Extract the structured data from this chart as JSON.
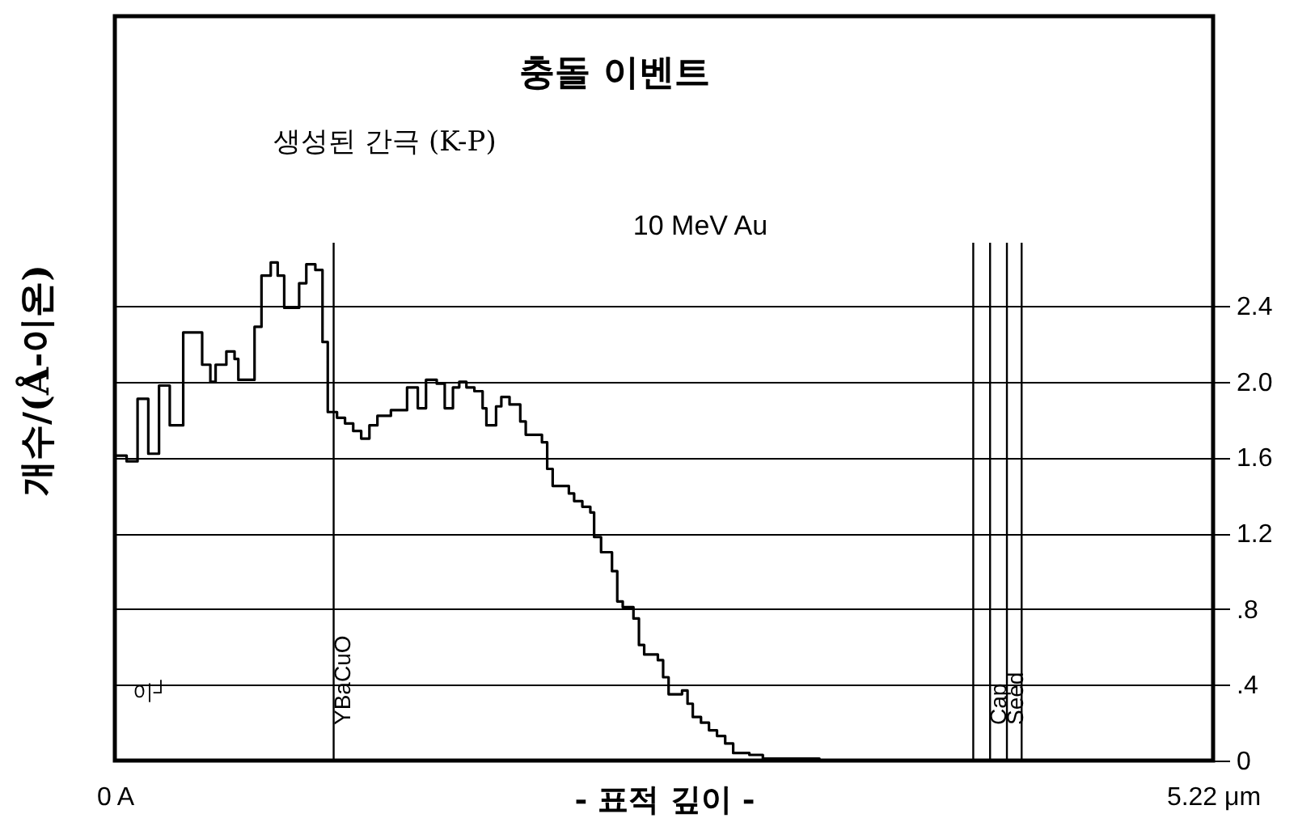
{
  "chart_data": {
    "type": "step",
    "title": "충돌 이벤트",
    "subtitle": "생성된 간극 (K-P)",
    "xlabel": "- 표적 깊이 -",
    "ylabel": "개수/(Å-이온)",
    "annotations": [
      "10 MeV Au",
      "이┘"
    ],
    "xlim": [
      0,
      5.22
    ],
    "xticks": [
      {
        "value": 0,
        "label": "0 A"
      },
      {
        "value": 5.22,
        "label": "5.22 μm"
      }
    ],
    "ylim": [
      0,
      3.93
    ],
    "yticks": [
      0,
      {
        "value": 0.4,
        "label": ".4"
      },
      {
        "value": 0.8,
        "label": ".8"
      },
      1.2,
      1.6,
      {
        "value": 2,
        "label": "2.0"
      },
      2.4
    ],
    "grid": "y",
    "ref_lines": [
      {
        "axis": "x",
        "value": 1.04,
        "label": "YBaCuO",
        "color": "#000000"
      },
      {
        "axis": "x",
        "value": 4.08,
        "color": "#000000"
      },
      {
        "axis": "x",
        "value": 4.16,
        "label": "Cap",
        "color": "#000000"
      },
      {
        "axis": "x",
        "value": 4.24,
        "label": "Seed",
        "color": "#000000"
      },
      {
        "axis": "x",
        "value": 4.31,
        "color": "#000000"
      }
    ],
    "series": [
      {
        "color": "#000000",
        "x": [
          0,
          0.056,
          0.108,
          0.159,
          0.21,
          0.261,
          0.325,
          0.415,
          0.454,
          0.479,
          0.53,
          0.569,
          0.587,
          0.664,
          0.697,
          0.741,
          0.774,
          0.805,
          0.876,
          0.91,
          0.953,
          0.987,
          1.012,
          1.056,
          1.094,
          1.133,
          1.171,
          1.21,
          1.248,
          1.312,
          1.389,
          1.44,
          1.479,
          1.53,
          1.568,
          1.607,
          1.637,
          1.671,
          1.709,
          1.748,
          1.766,
          1.812,
          1.837,
          1.876,
          1.927,
          1.953,
          2.03,
          2.055,
          2.081,
          2.158,
          2.183,
          2.222,
          2.26,
          2.278,
          2.311,
          2.363,
          2.388,
          2.414,
          2.465,
          2.491,
          2.516,
          2.581,
          2.606,
          2.632,
          2.696,
          2.722,
          2.747,
          2.786,
          2.824,
          2.862,
          2.901,
          2.939,
          3.016,
          3.08,
          3.144,
          3.349
        ],
        "values": [
          1.61,
          1.58,
          1.91,
          1.62,
          1.98,
          1.77,
          2.26,
          2.09,
          2.0,
          2.09,
          2.16,
          2.12,
          2.01,
          2.29,
          2.56,
          2.63,
          2.56,
          2.39,
          2.52,
          2.62,
          2.59,
          2.21,
          1.84,
          1.81,
          1.78,
          1.74,
          1.7,
          1.77,
          1.82,
          1.85,
          1.97,
          1.86,
          2.01,
          1.99,
          1.86,
          1.97,
          2.0,
          1.97,
          1.95,
          1.86,
          1.77,
          1.87,
          1.92,
          1.88,
          1.79,
          1.72,
          1.68,
          1.54,
          1.45,
          1.41,
          1.37,
          1.34,
          1.31,
          1.18,
          1.1,
          1.0,
          0.84,
          0.81,
          0.75,
          0.61,
          0.56,
          0.53,
          0.44,
          0.35,
          0.37,
          0.3,
          0.23,
          0.2,
          0.16,
          0.13,
          0.09,
          0.04,
          0.03,
          0.01,
          0.01,
          0
        ]
      }
    ]
  }
}
